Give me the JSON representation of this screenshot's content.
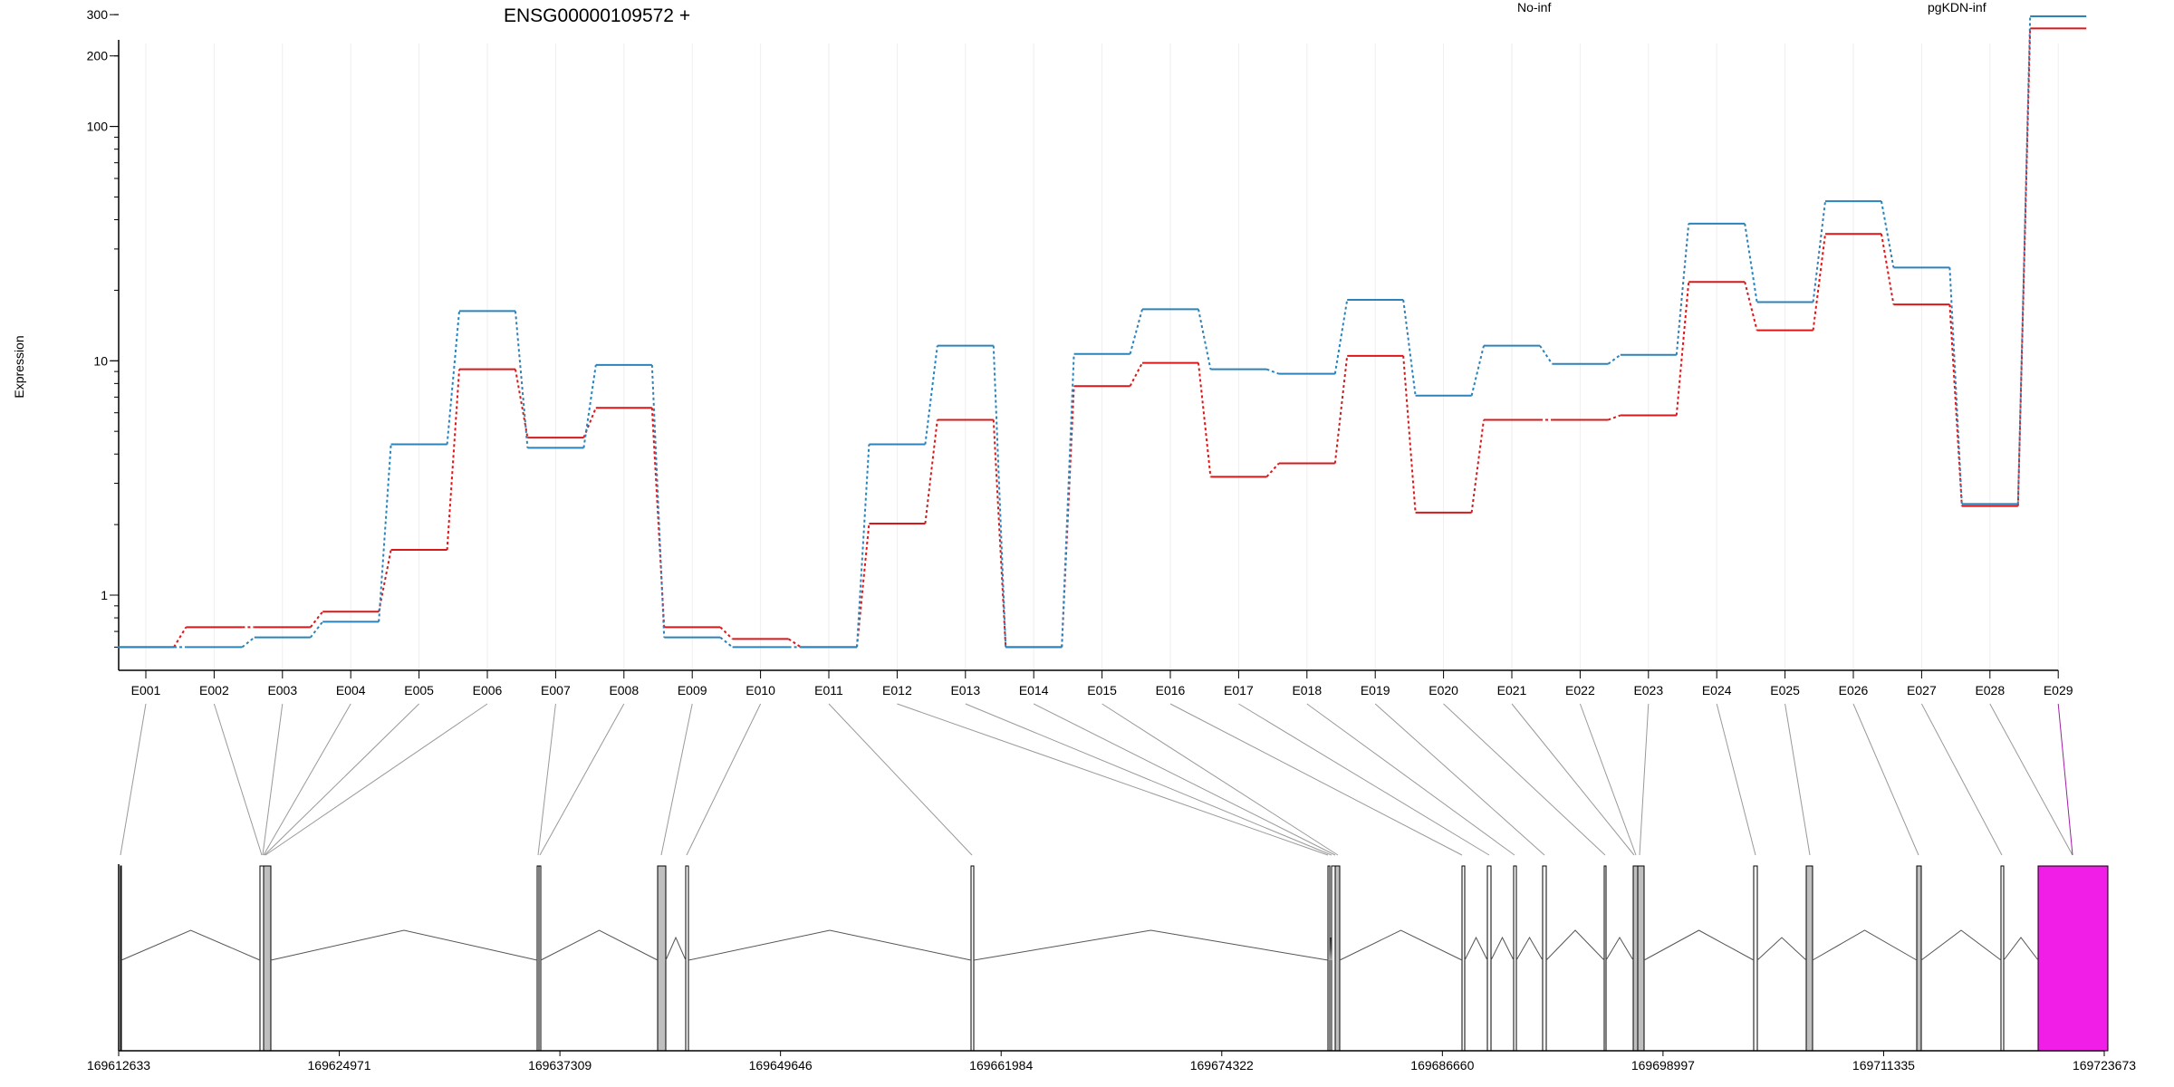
{
  "chart_data": {
    "type": "line",
    "title": "ENSG00000109572 +",
    "ylabel": "Expression",
    "yscale": "log",
    "ylim": [
      0.6,
      350
    ],
    "ytick_labels": [
      "300",
      "200",
      "100",
      "10",
      "1"
    ],
    "yticks": [
      300,
      200,
      100,
      10,
      1
    ],
    "categories": [
      "E001",
      "E002",
      "E003",
      "E004",
      "E005",
      "E006",
      "E007",
      "E008",
      "E009",
      "E010",
      "E011",
      "E012",
      "E013",
      "E014",
      "E015",
      "E016",
      "E017",
      "E018",
      "E019",
      "E020",
      "E021",
      "E022",
      "E023",
      "E024",
      "E025",
      "E026",
      "E027",
      "E028",
      "E029"
    ],
    "series": [
      {
        "name": "No-inf",
        "color": "#d7191c",
        "values": [
          0.6,
          0.73,
          0.73,
          0.85,
          1.56,
          9.2,
          4.7,
          6.3,
          0.73,
          0.65,
          0.6,
          2.02,
          5.6,
          0.6,
          7.8,
          9.8,
          3.2,
          3.65,
          10.5,
          2.25,
          5.6,
          5.6,
          5.85,
          21.7,
          13.5,
          34.8,
          17.4,
          2.4,
          262
        ]
      },
      {
        "name": "pgKDN-inf",
        "color": "#2b83ba",
        "values": [
          0.6,
          0.6,
          0.66,
          0.77,
          4.4,
          16.3,
          4.25,
          9.6,
          0.66,
          0.6,
          0.6,
          4.4,
          11.6,
          0.6,
          10.7,
          16.6,
          9.2,
          8.8,
          18.2,
          7.1,
          11.6,
          9.7,
          10.6,
          38.5,
          17.8,
          48.0,
          25.0,
          2.45,
          295
        ]
      }
    ],
    "genomic_axis": {
      "tick_labels": [
        "169612633",
        "169624971",
        "169637309",
        "169649646",
        "169661984",
        "169674322",
        "169686660",
        "169698997",
        "169711335",
        "169723673"
      ],
      "start": 169612633,
      "end": 169723673
    },
    "highlight_color": "#f01ee6",
    "exon_fill": "#bfbfbf"
  }
}
